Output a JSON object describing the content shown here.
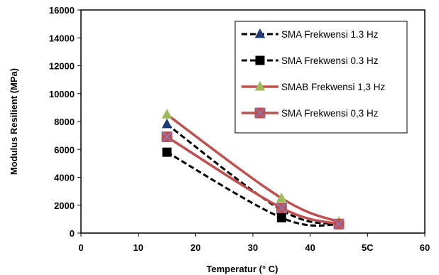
{
  "chart_data": {
    "type": "line",
    "xlabel": "Temperatur (° C)",
    "ylabel": "Modulus Resilient  (MPa)",
    "xlim": [
      0,
      60
    ],
    "ylim": [
      0,
      16000
    ],
    "xticks": [
      "0",
      "10",
      "20",
      "30",
      "40",
      "5C",
      "60"
    ],
    "yticks": [
      "0",
      "2000",
      "4000",
      "6000",
      "8000",
      "10000",
      "12000",
      "14000",
      "16000"
    ],
    "grid": false,
    "legend_position": "top-right",
    "series": [
      {
        "name": "SMA Frekwensi 1.3 Hz",
        "x": [
          15,
          35,
          45
        ],
        "y": [
          7800,
          1650,
          650
        ],
        "line_style": "dashed",
        "line_color": "#000000",
        "marker": "triangle",
        "marker_color": "#1f3b73"
      },
      {
        "name": "SMA Frekwensi 0.3 Hz",
        "x": [
          15,
          35,
          45
        ],
        "y": [
          5800,
          1100,
          600
        ],
        "line_style": "dashed",
        "line_color": "#000000",
        "marker": "square",
        "marker_color": "#000000"
      },
      {
        "name": "SMAB Frekwensi 1,3 Hz",
        "x": [
          15,
          35,
          45
        ],
        "y": [
          8500,
          2500,
          800
        ],
        "line_style": "solid",
        "line_color": "#c0504d",
        "marker": "triangle",
        "marker_color": "#9bbb59"
      },
      {
        "name": "SMA Frekwensi 0,3 Hz",
        "x": [
          15,
          35,
          45
        ],
        "y": [
          6900,
          1800,
          650
        ],
        "line_style": "solid",
        "line_color": "#c0504d",
        "marker": "square-x",
        "marker_color": "#c0504d"
      }
    ]
  }
}
